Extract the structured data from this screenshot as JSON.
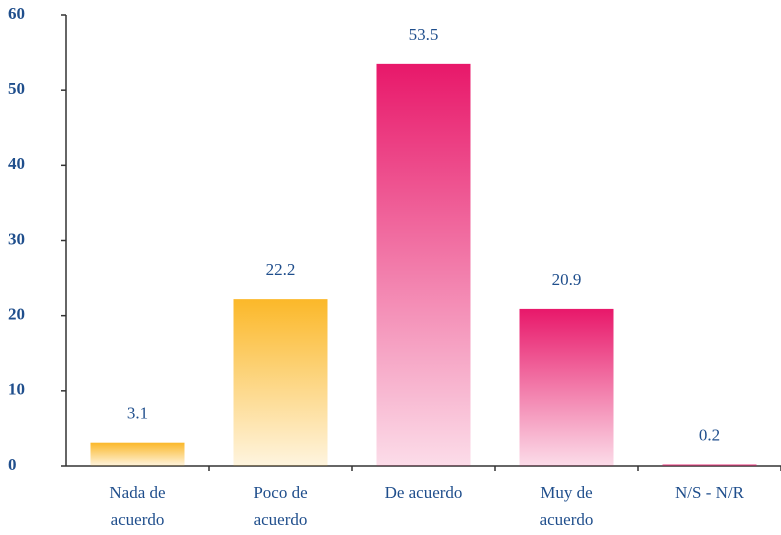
{
  "chart_data": {
    "type": "bar",
    "categories": [
      [
        "Nada de",
        "acuerdo"
      ],
      [
        "Poco de",
        "acuerdo"
      ],
      [
        "De acuerdo"
      ],
      [
        "Muy de",
        "acuerdo"
      ],
      [
        "N/S - N/R"
      ]
    ],
    "values": [
      3.1,
      22.2,
      53.5,
      20.9,
      0.2
    ],
    "colors": [
      "#fbb829",
      "#fbb829",
      "#e8186a",
      "#e8186a",
      "#e8186a"
    ],
    "ylim": [
      0,
      60
    ],
    "yticks": [
      0,
      10,
      20,
      30,
      40,
      50,
      60
    ],
    "grid": false
  }
}
